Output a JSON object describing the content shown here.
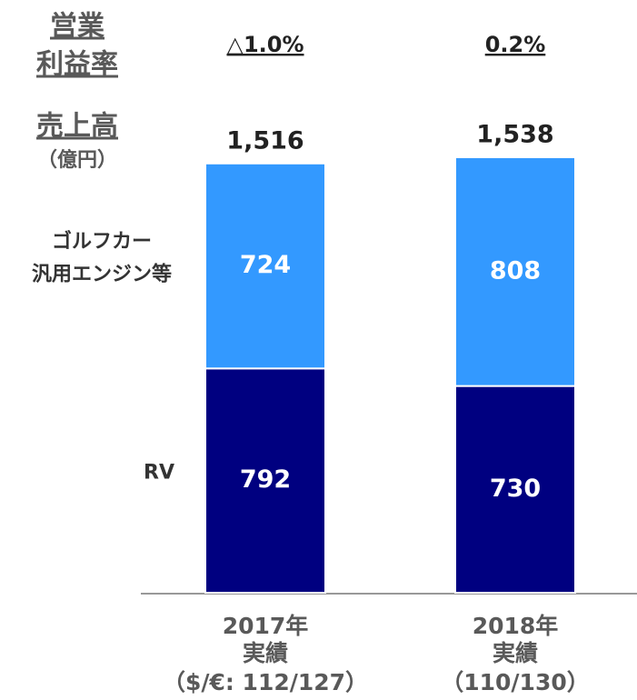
{
  "chart_data": {
    "type": "stacked_bar",
    "margin_title": [
      "営業",
      "利益率"
    ],
    "margin_values": [
      -1.0,
      0.2
    ],
    "margin_labels": [
      "△1.0%",
      "0.2%"
    ],
    "sales_title": "売上高",
    "unit": "（億円）",
    "categories": [
      "2017年",
      "2018年"
    ],
    "category_sublabels": [
      "実績",
      "実績"
    ],
    "category_notes": [
      "（$/€: 112/127）",
      "（110/130）"
    ],
    "totals": [
      1516,
      1538
    ],
    "total_labels": [
      "1,516",
      "1,538"
    ],
    "series": [
      {
        "name": [
          "RV"
        ],
        "color": "#000080",
        "values": [
          792,
          730
        ]
      },
      {
        "name": [
          "ゴルフカー",
          "汎用エンジン等"
        ],
        "color": "#3399ff",
        "values": [
          724,
          808
        ]
      }
    ]
  }
}
